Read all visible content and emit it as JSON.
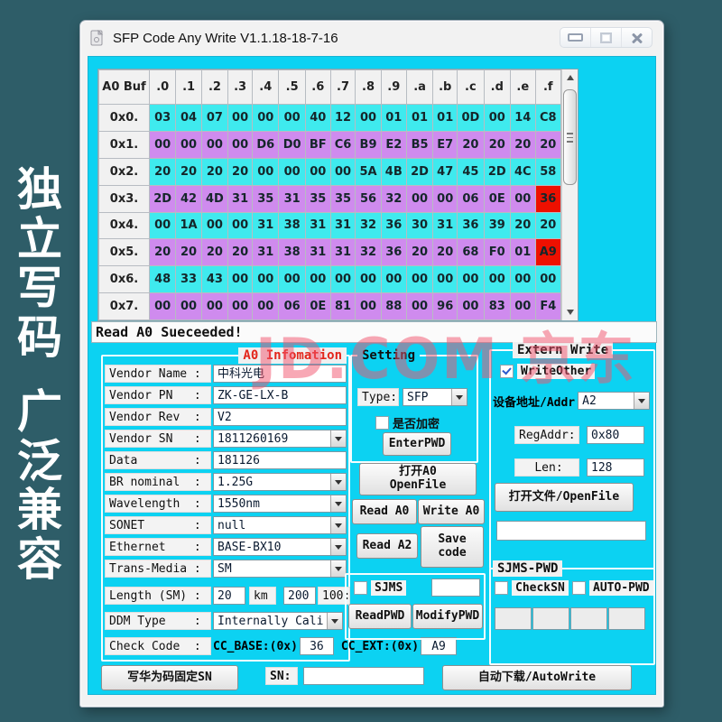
{
  "banner": {
    "line1": "独立写码",
    "line2": "广泛兼容"
  },
  "window": {
    "title": "SFP Code Any Write V1.1.18-18-7-16"
  },
  "status": "Read A0 Sueceeded!",
  "watermark": "JD.COM 京东",
  "hex_table": {
    "corner": "A0 Buf",
    "col_headers": [
      ".0",
      ".1",
      ".2",
      ".3",
      ".4",
      ".5",
      ".6",
      ".7",
      ".8",
      ".9",
      ".a",
      ".b",
      ".c",
      ".d",
      ".e",
      ".f"
    ],
    "rows": [
      {
        "label": "0x0.",
        "values": [
          "03",
          "04",
          "07",
          "00",
          "00",
          "00",
          "40",
          "12",
          "00",
          "01",
          "01",
          "01",
          "0D",
          "00",
          "14",
          "C8"
        ]
      },
      {
        "label": "0x1.",
        "values": [
          "00",
          "00",
          "00",
          "00",
          "D6",
          "D0",
          "BF",
          "C6",
          "B9",
          "E2",
          "B5",
          "E7",
          "20",
          "20",
          "20",
          "20"
        ]
      },
      {
        "label": "0x2.",
        "values": [
          "20",
          "20",
          "20",
          "20",
          "00",
          "00",
          "00",
          "00",
          "5A",
          "4B",
          "2D",
          "47",
          "45",
          "2D",
          "4C",
          "58"
        ]
      },
      {
        "label": "0x3.",
        "values": [
          "2D",
          "42",
          "4D",
          "31",
          "35",
          "31",
          "35",
          "35",
          "56",
          "32",
          "00",
          "00",
          "06",
          "0E",
          "00",
          "36"
        ]
      },
      {
        "label": "0x4.",
        "values": [
          "00",
          "1A",
          "00",
          "00",
          "31",
          "38",
          "31",
          "31",
          "32",
          "36",
          "30",
          "31",
          "36",
          "39",
          "20",
          "20"
        ]
      },
      {
        "label": "0x5.",
        "values": [
          "20",
          "20",
          "20",
          "20",
          "31",
          "38",
          "31",
          "31",
          "32",
          "36",
          "20",
          "20",
          "68",
          "F0",
          "01",
          "A9"
        ]
      },
      {
        "label": "0x6.",
        "values": [
          "48",
          "33",
          "43",
          "00",
          "00",
          "00",
          "00",
          "00",
          "00",
          "00",
          "00",
          "00",
          "00",
          "00",
          "00",
          "00"
        ]
      },
      {
        "label": "0x7.",
        "values": [
          "00",
          "00",
          "00",
          "00",
          "00",
          "06",
          "0E",
          "81",
          "00",
          "88",
          "00",
          "96",
          "00",
          "83",
          "00",
          "F4"
        ]
      }
    ],
    "highlights": [
      [
        3,
        15
      ],
      [
        5,
        15
      ]
    ]
  },
  "a0_info": {
    "title": "A0 Infomation",
    "fields": [
      {
        "label": "Vendor Name :",
        "value": "中科光电",
        "type": "text"
      },
      {
        "label": "Vendor PN   :",
        "value": "ZK-GE-LX-B",
        "type": "text"
      },
      {
        "label": "Vendor Rev  :",
        "value": "V2",
        "type": "text"
      },
      {
        "label": "Vendor SN   :",
        "value": "1811260169",
        "type": "combo"
      },
      {
        "label": "Data        :",
        "value": "181126",
        "type": "text"
      },
      {
        "label": "BR nominal  :",
        "value": "1.25G",
        "type": "combo"
      },
      {
        "label": "Wavelength  :",
        "value": "1550nm",
        "type": "combo"
      },
      {
        "label": "SONET       :",
        "value": "null",
        "type": "combo"
      },
      {
        "label": "Ethernet    :",
        "value": "BASE-BX10",
        "type": "combo"
      },
      {
        "label": "Trans-Media :",
        "value": "SM",
        "type": "combo"
      }
    ],
    "length_row": {
      "label": "Length (SM) :",
      "value1": "20",
      "unit1": "km",
      "value2": "200",
      "unit2": "100:"
    },
    "ddm_row": {
      "label": "DDM Type    :",
      "value": "Internally Cali"
    },
    "check_row": {
      "label": "Check Code  :",
      "base_label": "CC_BASE:(0x)",
      "base_value": "36",
      "ext_label": "CC_EXT:(0x)",
      "ext_value": "A9"
    }
  },
  "setting": {
    "title": "Setting",
    "type_label": "Type:",
    "type_value": "SFP",
    "encrypt_label": "是否加密",
    "encrypt_checked": false,
    "enter_pwd": "EnterPWD"
  },
  "actions": {
    "open_a0_line1": "打开A0",
    "open_a0_line2": "OpenFile",
    "read_a0": "Read A0",
    "write_a0": "Write A0",
    "read_a2": "Read A2",
    "save_line1": "Save",
    "save_line2": "code"
  },
  "sjms_box": {
    "label": "SJMS",
    "checked": false,
    "field_value": "",
    "read_pwd": "ReadPWD",
    "modify_pwd": "ModifyPWD"
  },
  "extern_write": {
    "title": "Extern Write",
    "write_other": "WriteOther",
    "write_other_checked": true,
    "addr_label": "设备地址/Addr",
    "addr_value": "A2",
    "reg_label": "RegAddr:",
    "reg_value": "0x80",
    "len_label": "Len:",
    "len_value": "128",
    "open_file": "打开文件/OpenFile",
    "file_value": ""
  },
  "sjms_pwd": {
    "title": "SJMS-PWD",
    "check_sn": "CheckSN",
    "check_sn_checked": false,
    "auto_pwd": "AUTO-PWD",
    "auto_pwd_checked": false,
    "cells": [
      "",
      "",
      "",
      ""
    ]
  },
  "bottom": {
    "write_huawei": "写华为码固定SN",
    "sn_label": "SN:",
    "sn_value": "",
    "auto_write": "自动下载/AutoWrite"
  },
  "colors": {
    "page_bg": "#2e5d68",
    "client_bg": "#0cd2f2",
    "row_cyan": "#3feaee",
    "row_violet": "#cf8bee",
    "cell_hot": "#ee1000",
    "title_red": "#e3261b",
    "watermark_pink": "#f2546e"
  }
}
